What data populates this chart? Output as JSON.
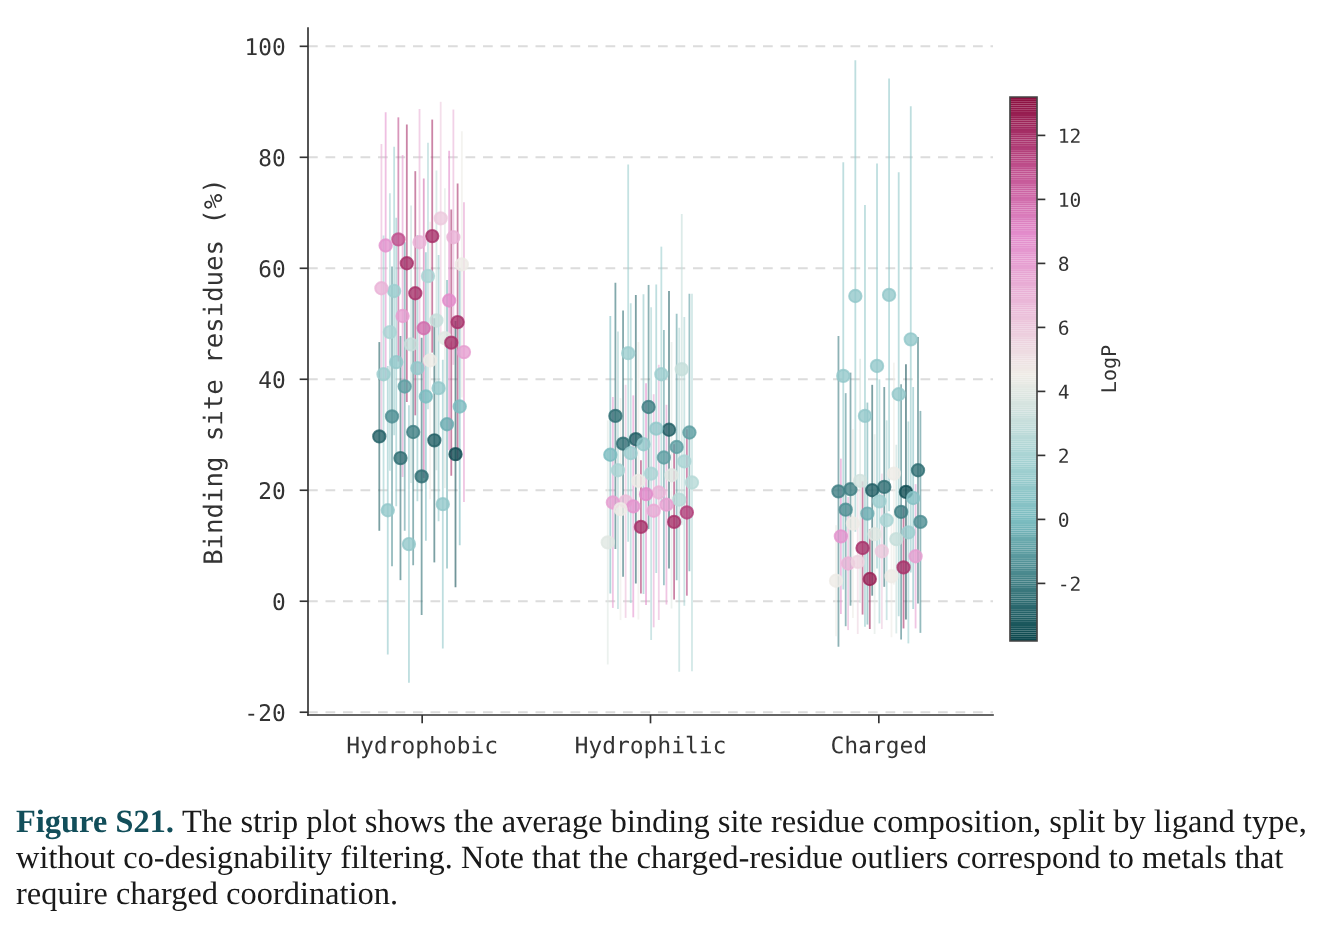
{
  "chart_data": {
    "type": "scatter",
    "ylabel": "Binding site residues (%)",
    "clabel": "LogP",
    "categories": [
      "Hydrophobic",
      "Hydrophilic",
      "Charged"
    ],
    "ylim": [
      -20.5,
      103.3
    ],
    "yticks": [
      -20,
      0,
      20,
      40,
      60,
      80,
      100
    ],
    "clim": [
      -3.8,
      13.2
    ],
    "cticks": [
      -2,
      0,
      2,
      4,
      6,
      8,
      10,
      12
    ],
    "grid": "y",
    "marker": "circle",
    "series": [
      {
        "x": [
          "Hydrophobic",
          "Hydrophobic",
          "Hydrophobic",
          "Hydrophobic",
          "Hydrophobic",
          "Hydrophobic",
          "Hydrophobic",
          "Hydrophobic",
          "Hydrophobic",
          "Hydrophobic",
          "Hydrophobic",
          "Hydrophobic",
          "Hydrophobic",
          "Hydrophobic",
          "Hydrophobic",
          "Hydrophobic",
          "Hydrophobic",
          "Hydrophobic",
          "Hydrophobic",
          "Hydrophobic",
          "Hydrophobic",
          "Hydrophobic",
          "Hydrophobic",
          "Hydrophobic",
          "Hydrophobic",
          "Hydrophobic",
          "Hydrophobic",
          "Hydrophobic",
          "Hydrophobic",
          "Hydrophobic",
          "Hydrophobic",
          "Hydrophobic",
          "Hydrophobic",
          "Hydrophobic",
          "Hydrophobic",
          "Hydrophobic",
          "Hydrophobic",
          "Hydrophobic",
          "Hydrophobic",
          "Hydrophobic",
          "Hydrophobic",
          "Hydrophilic",
          "Hydrophilic",
          "Hydrophilic",
          "Hydrophilic",
          "Hydrophilic",
          "Hydrophilic",
          "Hydrophilic",
          "Hydrophilic",
          "Hydrophilic",
          "Hydrophilic",
          "Hydrophilic",
          "Hydrophilic",
          "Hydrophilic",
          "Hydrophilic",
          "Hydrophilic",
          "Hydrophilic",
          "Hydrophilic",
          "Hydrophilic",
          "Hydrophilic",
          "Hydrophilic",
          "Hydrophilic",
          "Hydrophilic",
          "Hydrophilic",
          "Hydrophilic",
          "Hydrophilic",
          "Hydrophilic",
          "Hydrophilic",
          "Hydrophilic",
          "Hydrophilic",
          "Hydrophilic",
          "Hydrophilic",
          "Hydrophilic",
          "Hydrophilic",
          "Hydrophilic",
          "Charged",
          "Charged",
          "Charged",
          "Charged",
          "Charged",
          "Charged",
          "Charged",
          "Charged",
          "Charged",
          "Charged",
          "Charged",
          "Charged",
          "Charged",
          "Charged",
          "Charged",
          "Charged",
          "Charged",
          "Charged",
          "Charged",
          "Charged",
          "Charged",
          "Charged",
          "Charged",
          "Charged",
          "Charged",
          "Charged",
          "Charged",
          "Charged",
          "Charged",
          "Charged",
          "Charged",
          "Charged",
          "Charged",
          "Charged",
          "Charged",
          "Charged"
        ],
        "values": [
          65.8,
          65.2,
          65.6,
          64.7,
          64.1,
          69.0,
          60.9,
          60.7,
          58.6,
          55.9,
          54.2,
          55.5,
          56.4,
          50.6,
          51.4,
          50.3,
          49.2,
          48.5,
          47.4,
          46.3,
          44.9,
          43.4,
          43.1,
          46.6,
          42.0,
          40.9,
          38.4,
          38.7,
          35.1,
          36.9,
          33.3,
          31.9,
          30.5,
          29.7,
          29.0,
          25.8,
          26.5,
          22.5,
          16.4,
          17.5,
          10.3,
          40.9,
          44.7,
          41.8,
          35.0,
          33.4,
          30.9,
          29.2,
          30.4,
          31.1,
          28.4,
          27.8,
          28.3,
          26.4,
          25.9,
          26.7,
          25.2,
          23.0,
          23.6,
          22.7,
          21.7,
          21.4,
          19.6,
          18.0,
          18.3,
          19.3,
          17.8,
          17.4,
          17.1,
          16.0,
          16.3,
          16.6,
          14.3,
          13.4,
          10.6,
          55.2,
          55.0,
          47.2,
          42.4,
          40.6,
          37.3,
          33.4,
          23.6,
          20.6,
          20.2,
          19.7,
          20.0,
          19.8,
          23.0,
          21.7,
          18.6,
          18.0,
          16.5,
          16.1,
          15.8,
          14.3,
          14.6,
          14.0,
          12.4,
          12.1,
          11.7,
          11.2,
          9.6,
          8.1,
          9.0,
          6.8,
          6.1,
          4.0,
          3.7,
          4.5,
          7.1
        ],
        "errors": [
          21,
          22,
          23,
          24,
          24,
          21,
          25,
          24,
          24,
          26,
          27,
          22,
          26,
          27,
          29,
          25,
          27,
          25,
          27,
          25,
          27,
          25,
          26,
          24,
          24,
          25,
          24,
          26,
          25,
          26,
          27,
          26,
          24,
          17,
          22,
          22,
          24,
          25,
          26,
          26,
          25,
          23,
          34,
          28,
          22,
          24,
          25,
          26,
          25,
          26,
          24,
          24,
          27,
          25,
          23,
          27,
          26,
          30,
          25,
          24,
          25,
          34,
          23,
          21,
          31,
          20,
          19,
          18,
          20,
          15,
          21,
          20,
          14,
          12,
          22,
          39,
          42.5,
          42,
          36.5,
          38.5,
          40,
          38,
          24,
          18,
          21,
          23,
          19,
          28,
          20,
          22,
          20,
          22,
          21,
          23,
          20,
          20,
          18,
          17,
          20,
          18,
          14,
          17,
          12,
          13,
          14,
          12,
          11,
          9,
          10,
          11,
          13
        ],
        "cvalues": [
          12,
          11,
          7,
          7,
          8.5,
          6,
          12,
          4.5,
          2,
          1.5,
          9,
          12,
          7,
          3,
          8,
          12,
          10,
          2,
          4,
          3,
          8,
          4.5,
          1,
          12,
          1,
          1.5,
          1,
          -1,
          0,
          0,
          -1.5,
          -0.5,
          -2,
          -3,
          -3,
          -2.5,
          -3.5,
          -2.5,
          1,
          1,
          1,
          1.5,
          1.5,
          3,
          -2,
          -2.5,
          -3,
          -3,
          -1,
          1,
          -2.5,
          -1,
          1,
          0,
          -1,
          1.5,
          2,
          2,
          2,
          4,
          4.5,
          2.5,
          7,
          6.5,
          2.5,
          9,
          8,
          8,
          8.5,
          11.5,
          7.5,
          4.5,
          12,
          12,
          4,
          1,
          1,
          1,
          1,
          1,
          1,
          1,
          -2.5,
          -2.5,
          -2,
          -3.5,
          -3,
          -2,
          4.5,
          3.5,
          0.5,
          1.5,
          -1.5,
          -2,
          -0.5,
          -1.5,
          2,
          4.5,
          1.5,
          4,
          8.5,
          3,
          12,
          8,
          6,
          7,
          12,
          12.5,
          4.5,
          4.5,
          5.5
        ]
      }
    ],
    "annotations": [
      "Figure S21.",
      "The strip plot shows the average binding site residue composition, split by ligand type,",
      "without co-designability filtering. Note that the charged-residue outliers correspond to metals that\nrequire charged coordination."
    ]
  }
}
